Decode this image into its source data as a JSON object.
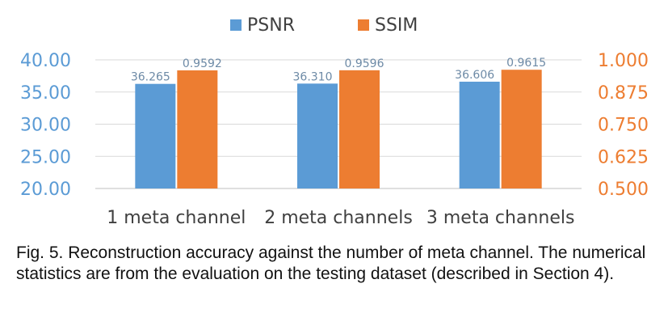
{
  "chart_data": {
    "type": "bar",
    "categories": [
      "1 meta channel",
      "2 meta channels",
      "3 meta channels"
    ],
    "series": [
      {
        "name": "PSNR",
        "axis": "left",
        "color": "#5b9bd5",
        "values": [
          36.265,
          36.31,
          36.606
        ],
        "labels": [
          "36.265",
          "36.310",
          "36.606"
        ]
      },
      {
        "name": "SSIM",
        "axis": "right",
        "color": "#ed7d31",
        "values": [
          0.9592,
          0.9596,
          0.9615
        ],
        "labels": [
          "0.9592",
          "0.9596",
          "0.9615"
        ]
      }
    ],
    "left_axis": {
      "ylim": [
        20,
        40
      ],
      "ticks": [
        20,
        25,
        30,
        35,
        40
      ],
      "tick_labels": [
        "20.00",
        "25.00",
        "30.00",
        "35.00",
        "40.00"
      ],
      "color": "#5b9bd5"
    },
    "right_axis": {
      "ylim": [
        0.5,
        1.0
      ],
      "ticks": [
        0.5,
        0.625,
        0.75,
        0.875,
        1.0
      ],
      "tick_labels": [
        "0.500",
        "0.625",
        "0.750",
        "0.875",
        "1.000"
      ],
      "color": "#ed7d31"
    },
    "grid": true,
    "legend_position": "top-center",
    "title": "",
    "xlabel": "",
    "ylabel": ""
  },
  "caption": "Fig. 5. Reconstruction accuracy against the number of meta channel. The numerical statistics are from the evaluation on the testing dataset (described in Section 4)."
}
